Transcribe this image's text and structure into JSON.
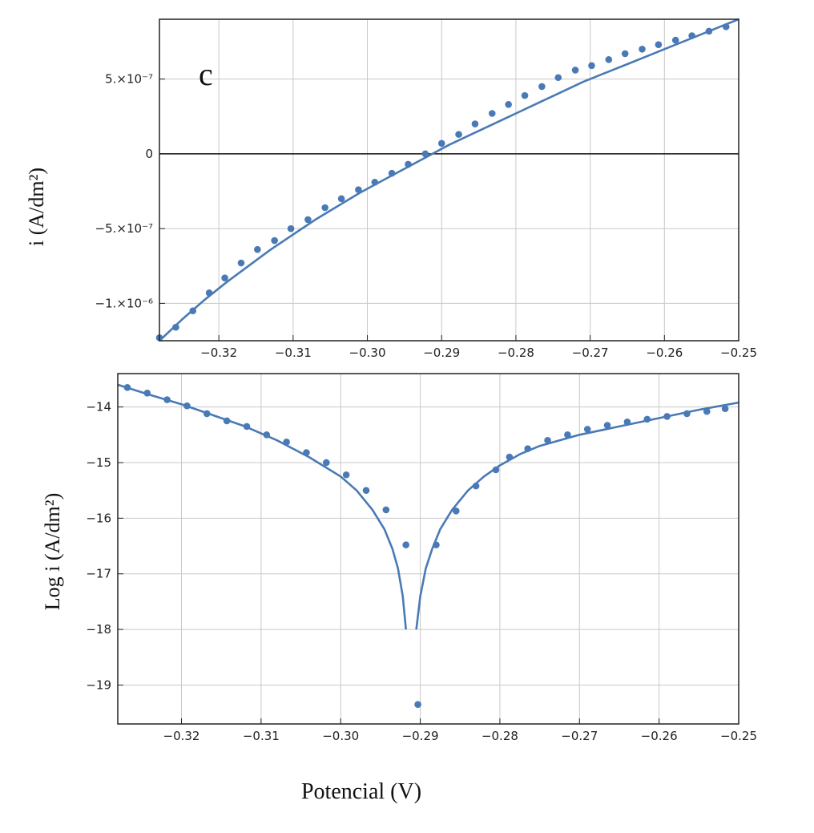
{
  "colors": {
    "series": "#4a7ab5",
    "grid": "#c8c8c8",
    "frame": "#222222",
    "zero_line": "#111111"
  },
  "chart_data": [
    {
      "type": "scatter",
      "panel_label": "c",
      "ylabel": "i (A/dm²)",
      "xlim": [
        -0.328,
        -0.25
      ],
      "ylim": [
        -1.25e-06,
        9e-07
      ],
      "x_ticks": [
        -0.32,
        -0.31,
        -0.3,
        -0.29,
        -0.28,
        -0.27,
        -0.26,
        -0.25
      ],
      "x_tick_labels": [
        "−0.32",
        "−0.31",
        "−0.30",
        "−0.29",
        "−0.28",
        "−0.27",
        "−0.26",
        "−0.25"
      ],
      "y_ticks": [
        5e-07,
        0,
        -5e-07,
        -1e-06
      ],
      "y_tick_labels": [
        "5.×10⁻⁷",
        "0",
        "−5.×10⁻⁷",
        "−1.×10⁻⁶"
      ],
      "grid": true,
      "zero_line": true,
      "series": [
        {
          "kind": "points",
          "x": [
            -0.328,
            -0.3258,
            -0.3235,
            -0.3213,
            -0.3192,
            -0.317,
            -0.3148,
            -0.3125,
            -0.3103,
            -0.308,
            -0.3057,
            -0.3035,
            -0.3012,
            -0.299,
            -0.2967,
            -0.2945,
            -0.2922,
            -0.29,
            -0.2877,
            -0.2855,
            -0.2832,
            -0.281,
            -0.2788,
            -0.2765,
            -0.2743,
            -0.272,
            -0.2698,
            -0.2675,
            -0.2653,
            -0.263,
            -0.2608,
            -0.2585,
            -0.2563,
            -0.254,
            -0.2517
          ],
          "y": [
            -1.23e-06,
            -1.16e-06,
            -1.05e-06,
            -9.3e-07,
            -8.3e-07,
            -7.3e-07,
            -6.4e-07,
            -5.8e-07,
            -5e-07,
            -4.4e-07,
            -3.6e-07,
            -3e-07,
            -2.4e-07,
            -1.9e-07,
            -1.3e-07,
            -7e-08,
            0,
            7e-08,
            1.3e-07,
            2e-07,
            2.7e-07,
            3.3e-07,
            3.9e-07,
            4.5e-07,
            5.1e-07,
            5.6e-07,
            5.9e-07,
            6.3e-07,
            6.7e-07,
            7e-07,
            7.3e-07,
            7.6e-07,
            7.9e-07,
            8.2e-07,
            8.5e-07
          ]
        },
        {
          "kind": "fit-line",
          "x": [
            -0.328,
            -0.325,
            -0.322,
            -0.319,
            -0.316,
            -0.313,
            -0.31,
            -0.307,
            -0.304,
            -0.301,
            -0.298,
            -0.295,
            -0.292,
            -0.289,
            -0.286,
            -0.283,
            -0.28,
            -0.277,
            -0.274,
            -0.271,
            -0.268,
            -0.265,
            -0.262,
            -0.259,
            -0.256,
            -0.253,
            -0.25
          ],
          "y": [
            -1.25e-06,
            -1.11e-06,
            -9.8e-07,
            -8.6e-07,
            -7.5e-07,
            -6.4e-07,
            -5.4e-07,
            -4.4e-07,
            -3.5e-07,
            -2.6e-07,
            -1.8e-07,
            -1e-07,
            -2e-08,
            6e-08,
            1.3e-07,
            2e-07,
            2.7e-07,
            3.4e-07,
            4.1e-07,
            4.8e-07,
            5.4e-07,
            6e-07,
            6.6e-07,
            7.2e-07,
            7.8e-07,
            8.4e-07,
            9e-07
          ]
        }
      ]
    },
    {
      "type": "scatter",
      "ylabel": "Log i (A/dm²)",
      "xlabel": "Potencial (V)",
      "xlim": [
        -0.328,
        -0.25
      ],
      "ylim": [
        -19.7,
        -13.4
      ],
      "x_ticks": [
        -0.32,
        -0.31,
        -0.3,
        -0.29,
        -0.28,
        -0.27,
        -0.26,
        -0.25
      ],
      "x_tick_labels": [
        "−0.32",
        "−0.31",
        "−0.30",
        "−0.29",
        "−0.28",
        "−0.27",
        "−0.26",
        "−0.25"
      ],
      "y_ticks": [
        -14,
        -15,
        -16,
        -17,
        -18,
        -19
      ],
      "y_tick_labels": [
        "−14",
        "−15",
        "−16",
        "−17",
        "−18",
        "−19"
      ],
      "grid": true,
      "series": [
        {
          "kind": "points",
          "x": [
            -0.3268,
            -0.3243,
            -0.3218,
            -0.3193,
            -0.3168,
            -0.3143,
            -0.3118,
            -0.3093,
            -0.3068,
            -0.3043,
            -0.3018,
            -0.2993,
            -0.2968,
            -0.2943,
            -0.2918,
            -0.2903,
            -0.288,
            -0.2855,
            -0.283,
            -0.2805,
            -0.2788,
            -0.2765,
            -0.274,
            -0.2715,
            -0.269,
            -0.2665,
            -0.264,
            -0.2615,
            -0.259,
            -0.2565,
            -0.254,
            -0.2517
          ],
          "y": [
            -13.65,
            -13.75,
            -13.87,
            -13.98,
            -14.12,
            -14.25,
            -14.35,
            -14.5,
            -14.63,
            -14.82,
            -15.0,
            -15.22,
            -15.5,
            -15.85,
            -16.48,
            -19.35,
            -16.48,
            -15.87,
            -15.42,
            -15.13,
            -14.9,
            -14.75,
            -14.6,
            -14.5,
            -14.4,
            -14.33,
            -14.27,
            -14.22,
            -14.17,
            -14.12,
            -14.08,
            -14.03
          ]
        },
        {
          "kind": "fit-line-left",
          "x": [
            -0.328,
            -0.324,
            -0.32,
            -0.316,
            -0.312,
            -0.308,
            -0.304,
            -0.3,
            -0.298,
            -0.296,
            -0.2945,
            -0.2935,
            -0.2928,
            -0.2922,
            -0.2918
          ],
          "y": [
            -13.6,
            -13.78,
            -13.95,
            -14.15,
            -14.35,
            -14.6,
            -14.9,
            -15.25,
            -15.5,
            -15.85,
            -16.2,
            -16.55,
            -16.9,
            -17.4,
            -18.0
          ]
        },
        {
          "kind": "fit-line-right",
          "x": [
            -0.2905,
            -0.29,
            -0.2893,
            -0.2885,
            -0.2875,
            -0.286,
            -0.284,
            -0.282,
            -0.28,
            -0.2775,
            -0.275,
            -0.27,
            -0.265,
            -0.26,
            -0.255,
            -0.25
          ],
          "y": [
            -18.0,
            -17.4,
            -16.9,
            -16.55,
            -16.2,
            -15.85,
            -15.5,
            -15.25,
            -15.05,
            -14.85,
            -14.7,
            -14.5,
            -14.35,
            -14.2,
            -14.05,
            -13.92
          ]
        }
      ]
    }
  ]
}
